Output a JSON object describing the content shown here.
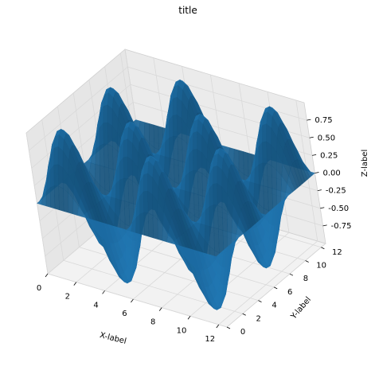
{
  "chart_data": {
    "type": "surface3d",
    "title": "title",
    "xlabel": "X-label",
    "ylabel": "Y-label",
    "zlabel": "Z-label",
    "function": "z = sin(x) * sin(y)",
    "xlim": [
      0,
      12.57
    ],
    "ylim": [
      0,
      12.57
    ],
    "zlim": [
      -1,
      1
    ],
    "x_ticks": [
      0,
      2,
      4,
      6,
      8,
      10,
      12
    ],
    "y_ticks": [
      0,
      2,
      4,
      6,
      8,
      10,
      12
    ],
    "z_ticks": [
      "-0.75",
      "-0.50",
      "-0.25",
      "0.00",
      "0.25",
      "0.50",
      "0.75"
    ],
    "grid": true,
    "surface_color": "#1f77b4"
  }
}
